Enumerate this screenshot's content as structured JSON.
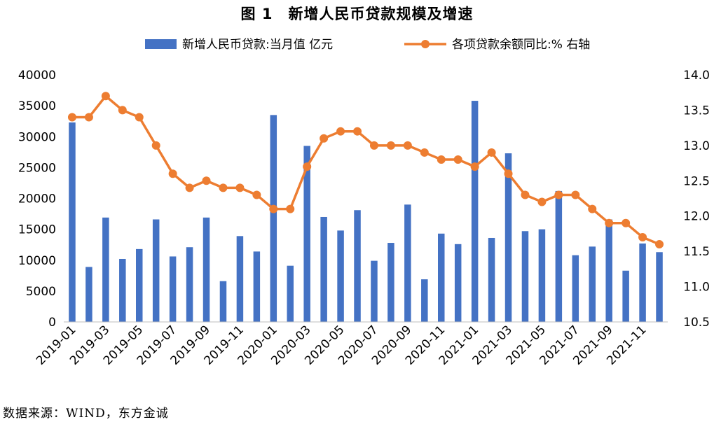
{
  "chart_data": {
    "type": "bar+line",
    "title": "图 1　新增人民币贷款规模及增速",
    "categories": [
      "2019-01",
      "2019-02",
      "2019-03",
      "2019-04",
      "2019-05",
      "2019-06",
      "2019-07",
      "2019-08",
      "2019-09",
      "2019-10",
      "2019-11",
      "2019-12",
      "2020-01",
      "2020-02",
      "2020-03",
      "2020-04",
      "2020-05",
      "2020-06",
      "2020-07",
      "2020-08",
      "2020-09",
      "2020-10",
      "2020-11",
      "2020-12",
      "2021-01",
      "2021-02",
      "2021-03",
      "2021-04",
      "2021-05",
      "2021-06",
      "2021-07",
      "2021-08",
      "2021-09",
      "2021-10",
      "2021-11",
      "2021-12"
    ],
    "tick_labels": [
      "2019-01",
      "2019-03",
      "2019-05",
      "2019-07",
      "2019-09",
      "2019-11",
      "2020-01",
      "2020-03",
      "2020-05",
      "2020-07",
      "2020-09",
      "2020-11",
      "2021-01",
      "2021-03",
      "2021-05",
      "2021-07",
      "2021-09",
      "2021-11"
    ],
    "series": [
      {
        "name": "新增人民币贷款:当月值 亿元",
        "type": "bar",
        "axis": "left",
        "color": "#4472C4",
        "values": [
          32300,
          8900,
          16900,
          10200,
          11800,
          16600,
          10600,
          12100,
          16900,
          6600,
          13900,
          11400,
          33500,
          9100,
          28500,
          17000,
          14800,
          18100,
          9900,
          12800,
          19000,
          6900,
          14300,
          12600,
          35800,
          13600,
          27300,
          14700,
          15000,
          21200,
          10800,
          12200,
          16600,
          8300,
          12700,
          11300
        ]
      },
      {
        "name": "各项贷款余额同比:% 右轴",
        "type": "line",
        "axis": "right",
        "color": "#ED7D31",
        "values": [
          13.4,
          13.4,
          13.7,
          13.5,
          13.4,
          13.0,
          12.6,
          12.4,
          12.5,
          12.4,
          12.4,
          12.3,
          12.1,
          12.1,
          12.7,
          13.1,
          13.2,
          13.2,
          13.0,
          13.0,
          13.0,
          12.9,
          12.8,
          12.8,
          12.7,
          12.9,
          12.6,
          12.3,
          12.2,
          12.3,
          12.3,
          12.1,
          11.9,
          11.9,
          11.7,
          11.6
        ]
      }
    ],
    "y_left": {
      "min": 0,
      "max": 40000,
      "ticks": [
        "0",
        "5000",
        "10000",
        "15000",
        "20000",
        "25000",
        "30000",
        "35000",
        "40000"
      ]
    },
    "y_right": {
      "min": 10.5,
      "max": 14.0,
      "ticks": [
        "10.5",
        "11.0",
        "11.5",
        "12.0",
        "12.5",
        "13.0",
        "13.5",
        "14.0"
      ]
    },
    "legend": {
      "position": "top-center"
    },
    "grid": false
  },
  "source": "数据来源：WIND，东方金诚"
}
